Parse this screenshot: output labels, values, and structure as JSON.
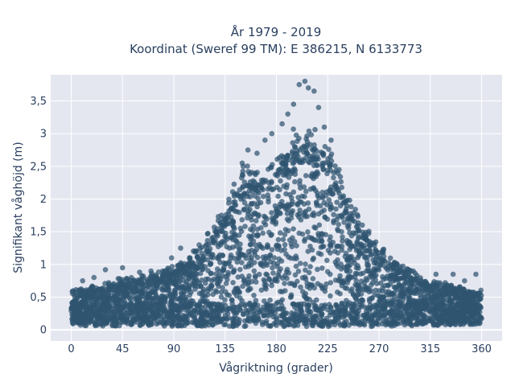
{
  "chart_data": {
    "type": "scatter",
    "title_line1": "År 1979 - 2019",
    "title_line2": "Koordinat (Sweref 99 TM): E 386215, N 6133773",
    "xlabel": "Vågriktning (grader)",
    "ylabel": "Signifikant våghöjd (m)",
    "xlim": [
      -18,
      378
    ],
    "ylim": [
      -0.17,
      3.9
    ],
    "x_ticks": [
      0,
      45,
      90,
      135,
      180,
      225,
      270,
      315,
      360
    ],
    "x_tick_labels": [
      "0",
      "45",
      "90",
      "135",
      "180",
      "225",
      "270",
      "315",
      "360"
    ],
    "y_ticks": [
      0,
      0.5,
      1,
      1.5,
      2,
      2.5,
      3,
      3.5
    ],
    "y_tick_labels": [
      "0",
      "0,5",
      "1",
      "1,5",
      "2",
      "2,5",
      "3",
      "3,5"
    ],
    "grid": true,
    "marker_color": "#2f5570",
    "plot_background": "#e5e7f0",
    "envelope": {
      "direction": [
        0,
        15,
        30,
        45,
        60,
        75,
        90,
        105,
        120,
        135,
        150,
        165,
        180,
        195,
        210,
        225,
        240,
        255,
        270,
        285,
        300,
        315,
        330,
        345,
        360
      ],
      "max_height": [
        0.55,
        0.6,
        0.65,
        0.75,
        0.75,
        0.8,
        0.9,
        1.05,
        1.35,
        1.75,
        2.3,
        2.25,
        2.4,
        2.8,
        2.9,
        2.65,
        2.0,
        1.5,
        1.2,
        0.95,
        0.8,
        0.7,
        0.65,
        0.6,
        0.55
      ],
      "min_height": [
        0.08,
        0.06,
        0.06,
        0.06,
        0.06,
        0.06,
        0.05,
        0.05,
        0.05,
        0.05,
        0.05,
        0.05,
        0.05,
        0.05,
        0.05,
        0.05,
        0.05,
        0.05,
        0.05,
        0.05,
        0.06,
        0.06,
        0.07,
        0.08,
        0.08
      ]
    },
    "outliers": [
      {
        "x": 200,
        "y": 3.75
      },
      {
        "x": 205,
        "y": 3.8
      },
      {
        "x": 208,
        "y": 3.7
      },
      {
        "x": 195,
        "y": 3.45
      },
      {
        "x": 213,
        "y": 3.65
      },
      {
        "x": 217,
        "y": 3.4
      },
      {
        "x": 190,
        "y": 3.3
      },
      {
        "x": 185,
        "y": 3.15
      },
      {
        "x": 222,
        "y": 3.1
      },
      {
        "x": 176,
        "y": 3.0
      },
      {
        "x": 163,
        "y": 2.7
      },
      {
        "x": 155,
        "y": 2.75
      },
      {
        "x": 150,
        "y": 2.55
      },
      {
        "x": 170,
        "y": 2.9
      },
      {
        "x": 228,
        "y": 2.9
      },
      {
        "x": 235,
        "y": 2.45
      },
      {
        "x": 96,
        "y": 1.25
      },
      {
        "x": 88,
        "y": 1.1
      },
      {
        "x": 110,
        "y": 1.2
      },
      {
        "x": 30,
        "y": 0.92
      },
      {
        "x": 45,
        "y": 0.95
      },
      {
        "x": 70,
        "y": 0.9
      },
      {
        "x": 60,
        "y": 0.88
      },
      {
        "x": 320,
        "y": 0.85
      },
      {
        "x": 335,
        "y": 0.85
      },
      {
        "x": 355,
        "y": 0.85
      },
      {
        "x": 300,
        "y": 0.9
      },
      {
        "x": 285,
        "y": 1.0
      },
      {
        "x": 10,
        "y": 0.75
      },
      {
        "x": 20,
        "y": 0.8
      },
      {
        "x": 345,
        "y": 0.75
      }
    ]
  }
}
